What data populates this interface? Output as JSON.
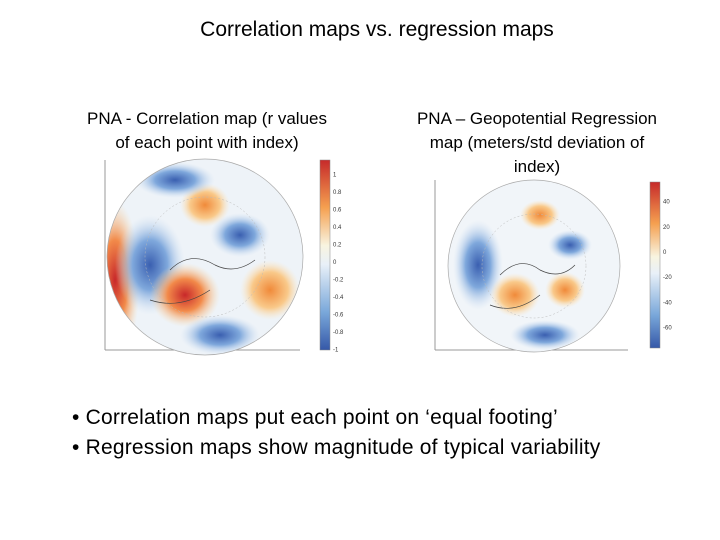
{
  "title": "Correlation maps vs. regression maps",
  "panels": [
    {
      "caption": [
        "PNA - Correlation map (r values",
        "of each point with index)"
      ],
      "colorbar_labels": [
        "1",
        "0.8",
        "0.6",
        "0.4",
        "0.2",
        "0",
        "-0.2",
        "-0.4",
        "-0.6",
        "-0.8",
        "-1"
      ]
    },
    {
      "caption": [
        "PNA – Geopotential Regression",
        "map  (meters/std deviation of",
        "index)"
      ],
      "colorbar_labels": [
        "40",
        "20",
        "0",
        "-20",
        "-40",
        "-60"
      ]
    }
  ],
  "bullets": [
    "• Correlation maps put each point on ‘equal footing’",
    "• Regression maps show magnitude of typical variability"
  ]
}
